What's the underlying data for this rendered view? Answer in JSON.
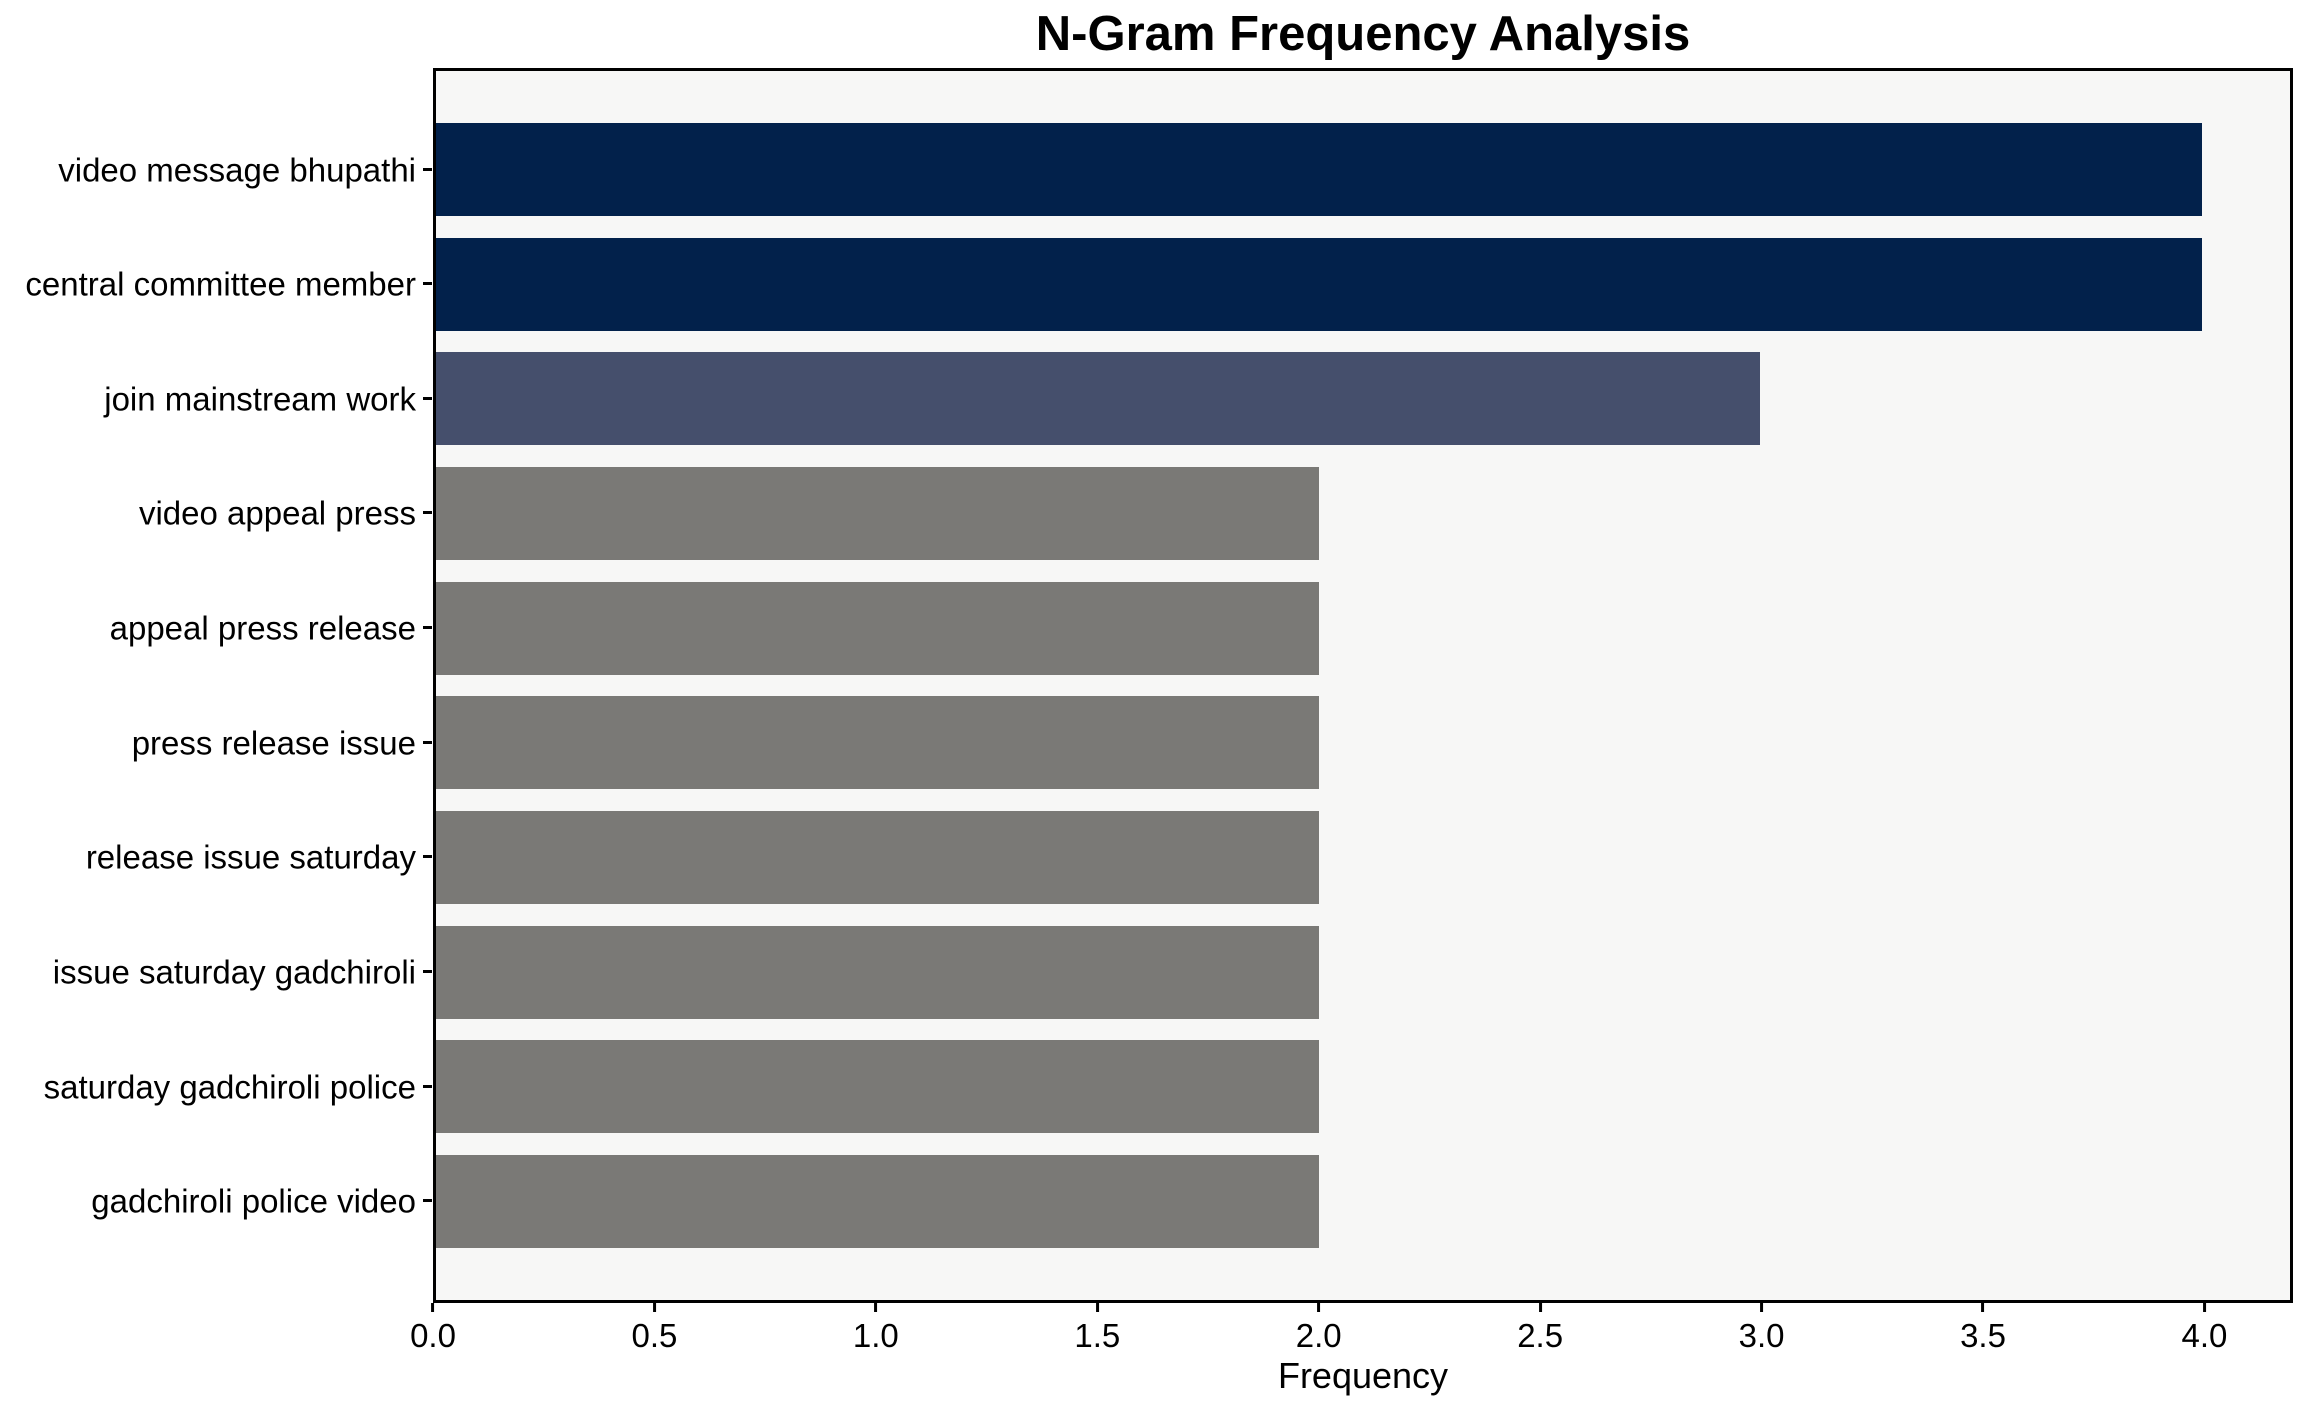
{
  "chart_data": {
    "type": "bar",
    "orientation": "horizontal",
    "title": "N-Gram Frequency Analysis",
    "xlabel": "Frequency",
    "ylabel": "",
    "categories": [
      "video message bhupathi",
      "central committee member",
      "join mainstream work",
      "video appeal press",
      "appeal press release",
      "press release issue",
      "release issue saturday",
      "issue saturday gadchiroli",
      "saturday gadchiroli police",
      "gadchiroli police video"
    ],
    "values": [
      4,
      4,
      3,
      2,
      2,
      2,
      2,
      2,
      2,
      2
    ],
    "bar_colors": [
      "#02214b",
      "#02214b",
      "#454f6c",
      "#7a7976",
      "#7a7976",
      "#7a7976",
      "#7a7976",
      "#7a7976",
      "#7a7976",
      "#7a7976"
    ],
    "xlim": [
      0,
      4.2
    ],
    "xticks": [
      0.0,
      0.5,
      1.0,
      1.5,
      2.0,
      2.5,
      3.0,
      3.5,
      4.0
    ],
    "xtick_labels": [
      "0.0",
      "0.5",
      "1.0",
      "1.5",
      "2.0",
      "2.5",
      "3.0",
      "3.5",
      "4.0"
    ],
    "grid": false,
    "legend_position": "none",
    "colors": {
      "figure_bg": "#ffffff",
      "plot_bg": "#f7f7f6",
      "spine": "#000000",
      "text": "#000000"
    }
  }
}
